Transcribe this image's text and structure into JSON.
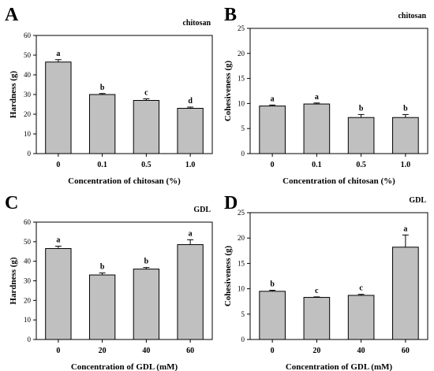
{
  "chart_data": [
    {
      "panel": "A",
      "type": "bar",
      "title": "chitosan",
      "xlabel": "Concentration of chitosan (%)",
      "ylabel": "Hardness (g)",
      "ylim": [
        0,
        60
      ],
      "yticks": [
        "0",
        "10",
        "20",
        "30",
        "40",
        "50",
        "60"
      ],
      "categories": [
        "0",
        "0.1",
        "0.5",
        "1.0"
      ],
      "values": [
        46.5,
        30,
        27,
        23
      ],
      "errors": [
        1.2,
        0.5,
        0.8,
        0.6
      ],
      "labels": [
        "a",
        "b",
        "c",
        "d"
      ],
      "bar_color": "#c0c0c0"
    },
    {
      "panel": "B",
      "type": "bar",
      "title": "chitosan",
      "xlabel": "Concentration of chitosan (%)",
      "ylabel": "Cohesiveness (g)",
      "ylim": [
        0,
        25
      ],
      "yticks": [
        "0",
        "5",
        "10",
        "15",
        "20",
        "25"
      ],
      "categories": [
        "0",
        "0.1",
        "0.5",
        "1.0"
      ],
      "values": [
        9.5,
        9.9,
        7.2,
        7.2
      ],
      "errors": [
        0.2,
        0.2,
        0.6,
        0.6
      ],
      "labels": [
        "a",
        "a",
        "b",
        "b"
      ],
      "bar_color": "#c0c0c0"
    },
    {
      "panel": "C",
      "type": "bar",
      "title": "GDL",
      "xlabel": "Concentration of GDL (mM)",
      "ylabel": "Hardness (g)",
      "ylim": [
        0,
        60
      ],
      "yticks": [
        "0",
        "10",
        "20",
        "30",
        "40",
        "50",
        "60"
      ],
      "categories": [
        "0",
        "20",
        "40",
        "60"
      ],
      "values": [
        46.5,
        33,
        36,
        48.5
      ],
      "errors": [
        1.2,
        1.0,
        0.8,
        2.5
      ],
      "labels": [
        "a",
        "b",
        "b",
        "a"
      ],
      "bar_color": "#c0c0c0"
    },
    {
      "panel": "D",
      "type": "bar",
      "title": "GDL",
      "xlabel": "Concentration of GDL (mM)",
      "ylabel": "Cohesiveness (g)",
      "ylim": [
        0,
        25
      ],
      "yticks": [
        "0",
        "5",
        "10",
        "15",
        "20",
        "25"
      ],
      "categories": [
        "0",
        "20",
        "40",
        "60"
      ],
      "values": [
        9.5,
        8.3,
        8.7,
        18.2
      ],
      "errors": [
        0.2,
        0.1,
        0.2,
        2.4
      ],
      "labels": [
        "b",
        "c",
        "c",
        "a"
      ],
      "bar_color": "#c0c0c0"
    }
  ]
}
